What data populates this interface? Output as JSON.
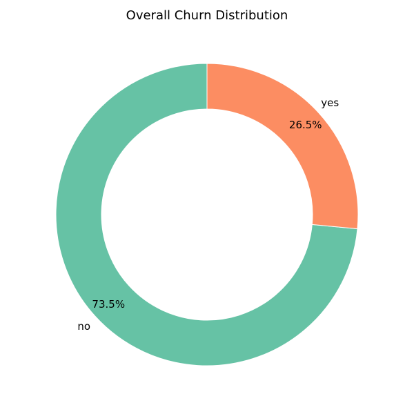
{
  "chart_data": {
    "type": "pie",
    "title": "Overall Churn Distribution",
    "donut": true,
    "categories": [
      "no",
      "yes"
    ],
    "values": [
      73.5,
      26.5
    ],
    "value_labels": [
      "73.5%",
      "26.5%"
    ],
    "colors": [
      "#66c2a5",
      "#fc8d62"
    ],
    "start_angle_deg": 90,
    "direction": "counterclockwise",
    "legend": "none"
  }
}
